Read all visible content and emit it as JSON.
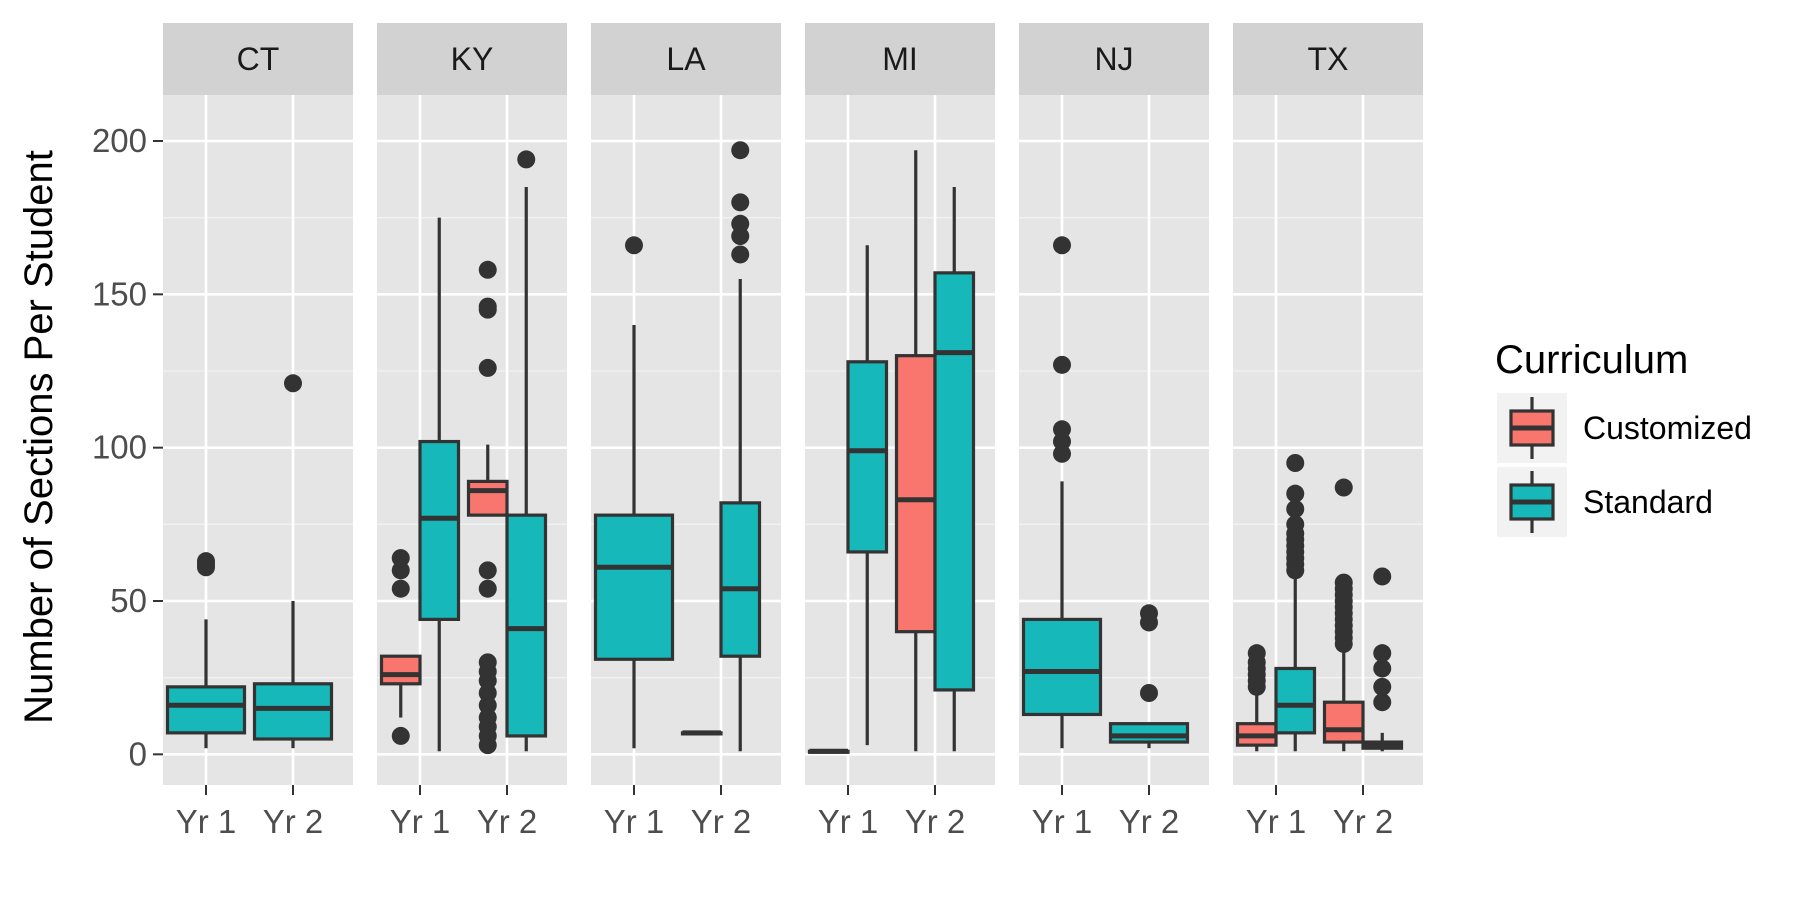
{
  "chart_data": {
    "type": "boxplot",
    "title": "",
    "xlabel": "",
    "ylabel": "Number of Sections Per Student",
    "ylim": [
      -10,
      215
    ],
    "y_ticks": [
      0,
      50,
      100,
      150,
      200
    ],
    "x_categories": [
      "Yr 1",
      "Yr 2"
    ],
    "facets": [
      "CT",
      "KY",
      "LA",
      "MI",
      "NJ",
      "TX"
    ],
    "legend": {
      "title": "Curriculum",
      "entries": [
        {
          "name": "Customized",
          "color": "#F8766D"
        },
        {
          "name": "Standard",
          "color": "#17B8B9"
        }
      ],
      "placement": "right"
    },
    "boxes": [
      {
        "facet": "CT",
        "x": "Yr 1",
        "group": "Standard",
        "min": 2,
        "q1": 7,
        "median": 16,
        "q3": 22,
        "max": 44,
        "outliers": [
          61,
          62,
          63
        ]
      },
      {
        "facet": "CT",
        "x": "Yr 2",
        "group": "Standard",
        "min": 2,
        "q1": 5,
        "median": 15,
        "q3": 23,
        "max": 50,
        "outliers": [
          121
        ]
      },
      {
        "facet": "KY",
        "x": "Yr 1",
        "group": "Customized",
        "min": 12,
        "q1": 23,
        "median": 26,
        "q3": 32,
        "max": 32,
        "outliers": [
          6,
          54,
          60,
          64
        ]
      },
      {
        "facet": "KY",
        "x": "Yr 1",
        "group": "Standard",
        "min": 1,
        "q1": 44,
        "median": 77,
        "q3": 102,
        "max": 175,
        "outliers": []
      },
      {
        "facet": "KY",
        "x": "Yr 2",
        "group": "Customized",
        "min": 78,
        "q1": 78,
        "median": 86,
        "q3": 89,
        "max": 101,
        "outliers": [
          3,
          6,
          9,
          12,
          16,
          20,
          24,
          27,
          30,
          54,
          60,
          126,
          145,
          146,
          158
        ]
      },
      {
        "facet": "KY",
        "x": "Yr 2",
        "group": "Standard",
        "min": 1,
        "q1": 6,
        "median": 41,
        "q3": 78,
        "max": 185,
        "outliers": [
          194
        ]
      },
      {
        "facet": "LA",
        "x": "Yr 1",
        "group": "Standard",
        "min": 2,
        "q1": 31,
        "median": 61,
        "q3": 78,
        "max": 140,
        "outliers": [
          166
        ]
      },
      {
        "facet": "LA",
        "x": "Yr 2",
        "group": "Customized",
        "min": 7,
        "q1": 7,
        "median": 7,
        "q3": 7,
        "max": 7,
        "outliers": []
      },
      {
        "facet": "LA",
        "x": "Yr 2",
        "group": "Standard",
        "min": 1,
        "q1": 32,
        "median": 54,
        "q3": 82,
        "max": 155,
        "outliers": [
          163,
          169,
          173,
          180,
          197
        ]
      },
      {
        "facet": "MI",
        "x": "Yr 1",
        "group": "Customized",
        "min": 1,
        "q1": 1,
        "median": 1,
        "q3": 1,
        "max": 1,
        "outliers": []
      },
      {
        "facet": "MI",
        "x": "Yr 1",
        "group": "Standard",
        "min": 3,
        "q1": 66,
        "median": 99,
        "q3": 128,
        "max": 166,
        "outliers": []
      },
      {
        "facet": "MI",
        "x": "Yr 2",
        "group": "Customized",
        "min": 1,
        "q1": 40,
        "median": 83,
        "q3": 130,
        "max": 197,
        "outliers": []
      },
      {
        "facet": "MI",
        "x": "Yr 2",
        "group": "Standard",
        "min": 1,
        "q1": 21,
        "median": 131,
        "q3": 157,
        "max": 185,
        "outliers": []
      },
      {
        "facet": "NJ",
        "x": "Yr 1",
        "group": "Standard",
        "min": 2,
        "q1": 13,
        "median": 27,
        "q3": 44,
        "max": 89,
        "outliers": [
          98,
          102,
          106,
          127,
          166
        ]
      },
      {
        "facet": "NJ",
        "x": "Yr 2",
        "group": "Standard",
        "min": 2,
        "q1": 4,
        "median": 6,
        "q3": 10,
        "max": 10,
        "outliers": [
          20,
          43,
          46
        ]
      },
      {
        "facet": "TX",
        "x": "Yr 1",
        "group": "Customized",
        "min": 1,
        "q1": 3,
        "median": 6,
        "q3": 10,
        "max": 20,
        "outliers": [
          22,
          24,
          26,
          28,
          30,
          33
        ]
      },
      {
        "facet": "TX",
        "x": "Yr 1",
        "group": "Standard",
        "min": 1,
        "q1": 7,
        "median": 16,
        "q3": 28,
        "max": 59,
        "outliers": [
          60,
          62,
          64,
          66,
          68,
          70,
          72,
          75,
          80,
          85,
          95
        ]
      },
      {
        "facet": "TX",
        "x": "Yr 2",
        "group": "Customized",
        "min": 1,
        "q1": 4,
        "median": 8,
        "q3": 17,
        "max": 35,
        "outliers": [
          36,
          38,
          40,
          42,
          44,
          46,
          48,
          50,
          52,
          54,
          56,
          87
        ]
      },
      {
        "facet": "TX",
        "x": "Yr 2",
        "group": "Standard",
        "min": 1,
        "q1": 2,
        "median": 3,
        "q3": 4,
        "max": 7,
        "outliers": [
          17,
          22,
          28,
          33,
          58
        ]
      }
    ]
  }
}
